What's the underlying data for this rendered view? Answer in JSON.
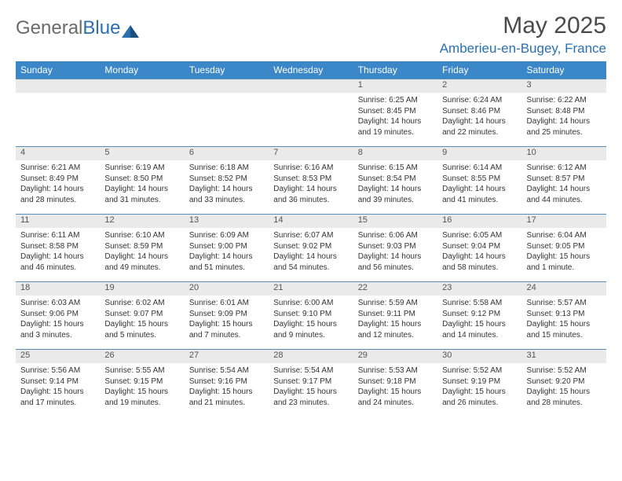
{
  "brand": {
    "part1": "General",
    "part2": "Blue"
  },
  "title": "May 2025",
  "location": "Amberieu-en-Bugey, France",
  "colors": {
    "header_bg": "#3b87c8",
    "header_text": "#ffffff",
    "daynum_bg": "#eaeaea",
    "week_divider": "#5a8cb8",
    "body_text": "#333333",
    "brand_gray": "#6a6a6a",
    "brand_blue": "#2a6fb0"
  },
  "day_labels": [
    "Sunday",
    "Monday",
    "Tuesday",
    "Wednesday",
    "Thursday",
    "Friday",
    "Saturday"
  ],
  "weeks": [
    [
      {
        "n": "",
        "sr": "",
        "ss": "",
        "dl1": "",
        "dl2": ""
      },
      {
        "n": "",
        "sr": "",
        "ss": "",
        "dl1": "",
        "dl2": ""
      },
      {
        "n": "",
        "sr": "",
        "ss": "",
        "dl1": "",
        "dl2": ""
      },
      {
        "n": "",
        "sr": "",
        "ss": "",
        "dl1": "",
        "dl2": ""
      },
      {
        "n": "1",
        "sr": "Sunrise: 6:25 AM",
        "ss": "Sunset: 8:45 PM",
        "dl1": "Daylight: 14 hours",
        "dl2": "and 19 minutes."
      },
      {
        "n": "2",
        "sr": "Sunrise: 6:24 AM",
        "ss": "Sunset: 8:46 PM",
        "dl1": "Daylight: 14 hours",
        "dl2": "and 22 minutes."
      },
      {
        "n": "3",
        "sr": "Sunrise: 6:22 AM",
        "ss": "Sunset: 8:48 PM",
        "dl1": "Daylight: 14 hours",
        "dl2": "and 25 minutes."
      }
    ],
    [
      {
        "n": "4",
        "sr": "Sunrise: 6:21 AM",
        "ss": "Sunset: 8:49 PM",
        "dl1": "Daylight: 14 hours",
        "dl2": "and 28 minutes."
      },
      {
        "n": "5",
        "sr": "Sunrise: 6:19 AM",
        "ss": "Sunset: 8:50 PM",
        "dl1": "Daylight: 14 hours",
        "dl2": "and 31 minutes."
      },
      {
        "n": "6",
        "sr": "Sunrise: 6:18 AM",
        "ss": "Sunset: 8:52 PM",
        "dl1": "Daylight: 14 hours",
        "dl2": "and 33 minutes."
      },
      {
        "n": "7",
        "sr": "Sunrise: 6:16 AM",
        "ss": "Sunset: 8:53 PM",
        "dl1": "Daylight: 14 hours",
        "dl2": "and 36 minutes."
      },
      {
        "n": "8",
        "sr": "Sunrise: 6:15 AM",
        "ss": "Sunset: 8:54 PM",
        "dl1": "Daylight: 14 hours",
        "dl2": "and 39 minutes."
      },
      {
        "n": "9",
        "sr": "Sunrise: 6:14 AM",
        "ss": "Sunset: 8:55 PM",
        "dl1": "Daylight: 14 hours",
        "dl2": "and 41 minutes."
      },
      {
        "n": "10",
        "sr": "Sunrise: 6:12 AM",
        "ss": "Sunset: 8:57 PM",
        "dl1": "Daylight: 14 hours",
        "dl2": "and 44 minutes."
      }
    ],
    [
      {
        "n": "11",
        "sr": "Sunrise: 6:11 AM",
        "ss": "Sunset: 8:58 PM",
        "dl1": "Daylight: 14 hours",
        "dl2": "and 46 minutes."
      },
      {
        "n": "12",
        "sr": "Sunrise: 6:10 AM",
        "ss": "Sunset: 8:59 PM",
        "dl1": "Daylight: 14 hours",
        "dl2": "and 49 minutes."
      },
      {
        "n": "13",
        "sr": "Sunrise: 6:09 AM",
        "ss": "Sunset: 9:00 PM",
        "dl1": "Daylight: 14 hours",
        "dl2": "and 51 minutes."
      },
      {
        "n": "14",
        "sr": "Sunrise: 6:07 AM",
        "ss": "Sunset: 9:02 PM",
        "dl1": "Daylight: 14 hours",
        "dl2": "and 54 minutes."
      },
      {
        "n": "15",
        "sr": "Sunrise: 6:06 AM",
        "ss": "Sunset: 9:03 PM",
        "dl1": "Daylight: 14 hours",
        "dl2": "and 56 minutes."
      },
      {
        "n": "16",
        "sr": "Sunrise: 6:05 AM",
        "ss": "Sunset: 9:04 PM",
        "dl1": "Daylight: 14 hours",
        "dl2": "and 58 minutes."
      },
      {
        "n": "17",
        "sr": "Sunrise: 6:04 AM",
        "ss": "Sunset: 9:05 PM",
        "dl1": "Daylight: 15 hours",
        "dl2": "and 1 minute."
      }
    ],
    [
      {
        "n": "18",
        "sr": "Sunrise: 6:03 AM",
        "ss": "Sunset: 9:06 PM",
        "dl1": "Daylight: 15 hours",
        "dl2": "and 3 minutes."
      },
      {
        "n": "19",
        "sr": "Sunrise: 6:02 AM",
        "ss": "Sunset: 9:07 PM",
        "dl1": "Daylight: 15 hours",
        "dl2": "and 5 minutes."
      },
      {
        "n": "20",
        "sr": "Sunrise: 6:01 AM",
        "ss": "Sunset: 9:09 PM",
        "dl1": "Daylight: 15 hours",
        "dl2": "and 7 minutes."
      },
      {
        "n": "21",
        "sr": "Sunrise: 6:00 AM",
        "ss": "Sunset: 9:10 PM",
        "dl1": "Daylight: 15 hours",
        "dl2": "and 9 minutes."
      },
      {
        "n": "22",
        "sr": "Sunrise: 5:59 AM",
        "ss": "Sunset: 9:11 PM",
        "dl1": "Daylight: 15 hours",
        "dl2": "and 12 minutes."
      },
      {
        "n": "23",
        "sr": "Sunrise: 5:58 AM",
        "ss": "Sunset: 9:12 PM",
        "dl1": "Daylight: 15 hours",
        "dl2": "and 14 minutes."
      },
      {
        "n": "24",
        "sr": "Sunrise: 5:57 AM",
        "ss": "Sunset: 9:13 PM",
        "dl1": "Daylight: 15 hours",
        "dl2": "and 15 minutes."
      }
    ],
    [
      {
        "n": "25",
        "sr": "Sunrise: 5:56 AM",
        "ss": "Sunset: 9:14 PM",
        "dl1": "Daylight: 15 hours",
        "dl2": "and 17 minutes."
      },
      {
        "n": "26",
        "sr": "Sunrise: 5:55 AM",
        "ss": "Sunset: 9:15 PM",
        "dl1": "Daylight: 15 hours",
        "dl2": "and 19 minutes."
      },
      {
        "n": "27",
        "sr": "Sunrise: 5:54 AM",
        "ss": "Sunset: 9:16 PM",
        "dl1": "Daylight: 15 hours",
        "dl2": "and 21 minutes."
      },
      {
        "n": "28",
        "sr": "Sunrise: 5:54 AM",
        "ss": "Sunset: 9:17 PM",
        "dl1": "Daylight: 15 hours",
        "dl2": "and 23 minutes."
      },
      {
        "n": "29",
        "sr": "Sunrise: 5:53 AM",
        "ss": "Sunset: 9:18 PM",
        "dl1": "Daylight: 15 hours",
        "dl2": "and 24 minutes."
      },
      {
        "n": "30",
        "sr": "Sunrise: 5:52 AM",
        "ss": "Sunset: 9:19 PM",
        "dl1": "Daylight: 15 hours",
        "dl2": "and 26 minutes."
      },
      {
        "n": "31",
        "sr": "Sunrise: 5:52 AM",
        "ss": "Sunset: 9:20 PM",
        "dl1": "Daylight: 15 hours",
        "dl2": "and 28 minutes."
      }
    ]
  ]
}
